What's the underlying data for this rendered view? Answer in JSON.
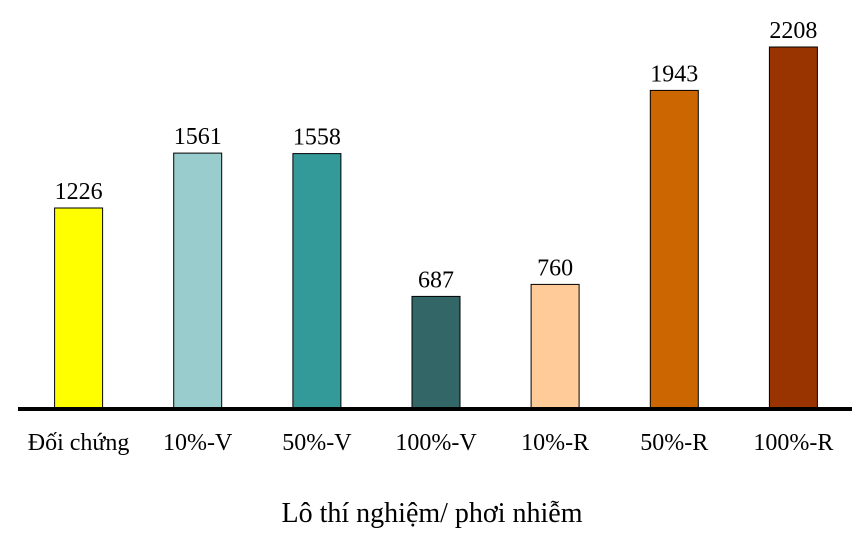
{
  "chart_data": {
    "type": "bar",
    "title": "",
    "xlabel": "Lô thí nghiệm/ phơi nhiễm",
    "ylabel": "",
    "categories": [
      "Đối chứng",
      "10%-V",
      "50%-V",
      "100%-V",
      "10%-R",
      "50%-R",
      "100%-R"
    ],
    "values": [
      1226,
      1561,
      1558,
      687,
      760,
      1943,
      2208
    ],
    "data_labels": [
      "1226",
      "1561",
      "1558",
      "687",
      "760",
      "1943",
      "2208"
    ],
    "bar_colors": [
      "#ffff00",
      "#99cccc",
      "#339999",
      "#336666",
      "#ffcc99",
      "#cc6600",
      "#993300"
    ],
    "ylim": [
      0,
      2208
    ],
    "grid": false,
    "legend": "none"
  }
}
